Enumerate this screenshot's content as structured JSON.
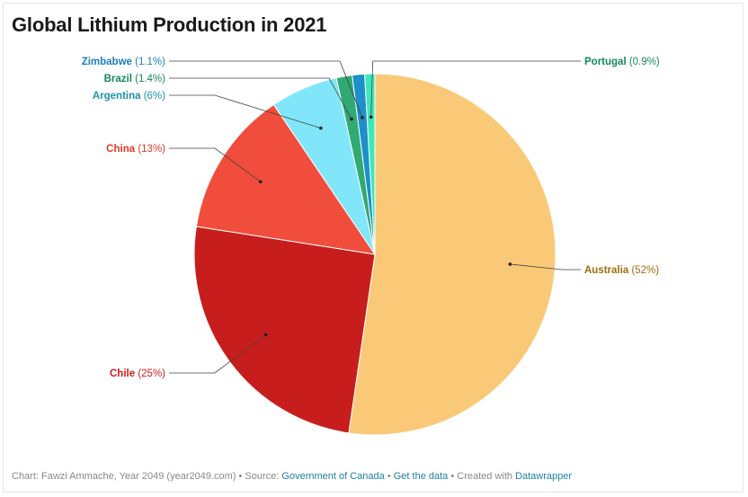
{
  "title": "Global Lithium Production in 2021",
  "chart_data": {
    "type": "pie",
    "title": "Global Lithium Production in 2021",
    "slices": [
      {
        "label": "Australia",
        "value": 52,
        "value_text": "(52%)",
        "color": "#fac977",
        "label_color": "#9c6e12",
        "label_side": "right"
      },
      {
        "label": "Chile",
        "value": 25,
        "value_text": "(25%)",
        "color": "#c71e1d",
        "label_color": "#c71e1d",
        "label_side": "left"
      },
      {
        "label": "China",
        "value": 13,
        "value_text": "(13%)",
        "color": "#f04d3d",
        "label_color": "#e0382b",
        "label_side": "left"
      },
      {
        "label": "Argentina",
        "value": 6,
        "value_text": "(6%)",
        "color": "#81e6fa",
        "label_color": "#1b93a6",
        "label_side": "left"
      },
      {
        "label": "Brazil",
        "value": 1.4,
        "value_text": "(1.4%)",
        "color": "#2eaa72",
        "label_color": "#15895a",
        "label_side": "left"
      },
      {
        "label": "Zimbabwe",
        "value": 1.1,
        "value_text": "(1.1%)",
        "color": "#1d8fc9",
        "label_color": "#1a7fb6",
        "label_side": "left"
      },
      {
        "label": "Portugal",
        "value": 0.9,
        "value_text": "(0.9%)",
        "color": "#3de8b8",
        "label_color": "#15895a",
        "label_side": "right"
      }
    ]
  },
  "footer": {
    "credit": "Chart: Fawzi Ammache, Year 2049 (year2049.com)",
    "sep1": " • Source: ",
    "source": "Government of Canada",
    "sep2": " • ",
    "get_data": "Get the data",
    "sep3": " • Created with ",
    "tool": "Datawrapper"
  }
}
